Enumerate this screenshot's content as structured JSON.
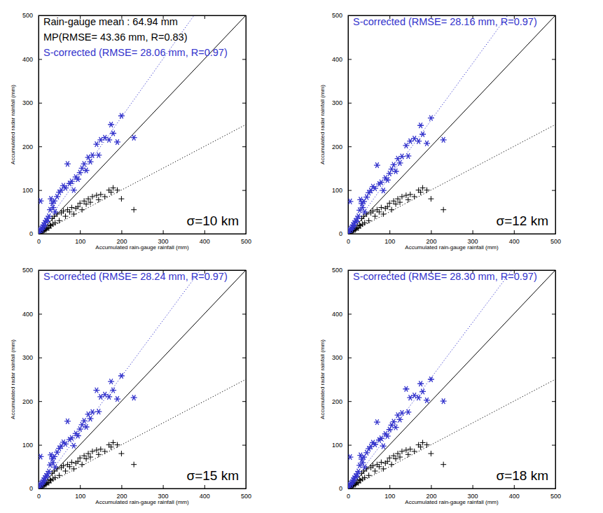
{
  "chart_data": [
    {
      "type": "scatter",
      "title": "σ=10 km",
      "x_label": "Accumulated rain-gauge rainfall (mm)",
      "y_label": "Accumulated radar rainfall (mm)",
      "xlim": [
        0,
        500
      ],
      "ylim": [
        0,
        500
      ],
      "xticks": [
        0,
        100,
        200,
        300,
        400,
        500
      ],
      "yticks": [
        0,
        100,
        200,
        300,
        400,
        500
      ],
      "grid": false,
      "annotations": [
        {
          "text": "Rain-gauge mean : 64.94 mm",
          "color": "#000000"
        },
        {
          "text": "MP(RMSE= 43.36 mm, R=0.83)",
          "color": "#000000"
        },
        {
          "text": "S-corrected (RMSE= 28.06 mm, R=0.97)",
          "color": "#3333cc"
        }
      ],
      "series": [
        {
          "type": "line",
          "line_style": "solid",
          "color": "#000000",
          "x": [
            0,
            500
          ],
          "values": [
            0,
            500
          ]
        },
        {
          "type": "line",
          "line_style": "dotted",
          "color": "#000000",
          "x": [
            0,
            500
          ],
          "values": [
            0,
            250
          ]
        },
        {
          "type": "line",
          "line_style": "dotted",
          "color": "#3333cc",
          "x": [
            0,
            375
          ],
          "values": [
            0,
            500
          ]
        },
        {
          "type": "scatter",
          "marker": "plus",
          "color": "#000000",
          "x": [
            2,
            4,
            5,
            7,
            8,
            10,
            12,
            14,
            15,
            18,
            20,
            22,
            25,
            28,
            30,
            33,
            35,
            38,
            40,
            45,
            50,
            55,
            60,
            65,
            70,
            75,
            80,
            85,
            90,
            95,
            100,
            105,
            110,
            115,
            120,
            125,
            130,
            140,
            145,
            150,
            160,
            170,
            175,
            180,
            190,
            200,
            230
          ],
          "values": [
            1,
            3,
            2,
            5,
            4,
            6,
            7,
            8,
            10,
            9,
            12,
            14,
            13,
            20,
            18,
            35,
            22,
            40,
            25,
            45,
            30,
            48,
            52,
            40,
            55,
            50,
            60,
            45,
            58,
            62,
            70,
            55,
            75,
            68,
            80,
            72,
            85,
            88,
            78,
            90,
            85,
            100,
            95,
            105,
            100,
            80,
            55
          ]
        },
        {
          "type": "scatter",
          "marker": "asterisk",
          "color": "#3333cc",
          "x": [
            2,
            4,
            5,
            7,
            8,
            10,
            12,
            14,
            15,
            18,
            20,
            22,
            25,
            28,
            30,
            33,
            35,
            38,
            40,
            45,
            50,
            55,
            60,
            65,
            70,
            75,
            80,
            85,
            90,
            95,
            100,
            105,
            110,
            115,
            120,
            125,
            130,
            140,
            145,
            150,
            160,
            170,
            175,
            180,
            190,
            200,
            230
          ],
          "values": [
            3,
            8,
            75,
            12,
            10,
            15,
            20,
            18,
            25,
            30,
            28,
            35,
            40,
            55,
            80,
            70,
            60,
            75,
            50,
            85,
            95,
            100,
            110,
            105,
            160,
            115,
            120,
            100,
            130,
            125,
            140,
            150,
            160,
            145,
            175,
            165,
            180,
            205,
            180,
            215,
            220,
            215,
            250,
            230,
            210,
            270,
            220
          ]
        }
      ]
    },
    {
      "type": "scatter",
      "title": "σ=12 km",
      "x_label": "Accumulated rain-gauge rainfall (mm)",
      "y_label": "Accumulated radar rainfall (mm)",
      "xlim": [
        0,
        500
      ],
      "ylim": [
        0,
        500
      ],
      "xticks": [
        0,
        100,
        200,
        300,
        400,
        500
      ],
      "yticks": [
        0,
        100,
        200,
        300,
        400,
        500
      ],
      "grid": false,
      "annotations": [
        {
          "text": "S-corrected (RMSE= 28.16 mm, R=0.97)",
          "color": "#3333cc"
        }
      ],
      "series": [
        {
          "type": "line",
          "line_style": "solid",
          "color": "#000000",
          "x": [
            0,
            500
          ],
          "values": [
            0,
            500
          ]
        },
        {
          "type": "line",
          "line_style": "dotted",
          "color": "#000000",
          "x": [
            0,
            500
          ],
          "values": [
            0,
            250
          ]
        },
        {
          "type": "line",
          "line_style": "dotted",
          "color": "#3333cc",
          "x": [
            0,
            385
          ],
          "values": [
            0,
            500
          ]
        },
        {
          "type": "scatter",
          "marker": "plus",
          "color": "#000000",
          "x": [
            2,
            4,
            5,
            7,
            8,
            10,
            12,
            14,
            15,
            18,
            20,
            22,
            25,
            28,
            30,
            33,
            35,
            38,
            40,
            45,
            50,
            55,
            60,
            65,
            70,
            75,
            80,
            85,
            90,
            95,
            100,
            105,
            110,
            115,
            120,
            125,
            130,
            140,
            145,
            150,
            160,
            170,
            175,
            180,
            190,
            200,
            230
          ],
          "values": [
            1,
            3,
            2,
            5,
            4,
            6,
            7,
            8,
            10,
            9,
            12,
            14,
            13,
            20,
            18,
            35,
            22,
            40,
            25,
            45,
            30,
            48,
            52,
            40,
            55,
            50,
            60,
            45,
            58,
            62,
            70,
            55,
            75,
            68,
            80,
            72,
            85,
            88,
            78,
            90,
            85,
            100,
            95,
            105,
            100,
            80,
            55
          ]
        },
        {
          "type": "scatter",
          "marker": "asterisk",
          "color": "#3333cc",
          "x": [
            2,
            4,
            5,
            7,
            8,
            10,
            12,
            14,
            15,
            18,
            20,
            22,
            25,
            28,
            30,
            33,
            35,
            38,
            40,
            45,
            50,
            55,
            60,
            65,
            70,
            75,
            80,
            85,
            90,
            95,
            100,
            105,
            110,
            115,
            120,
            125,
            130,
            140,
            145,
            150,
            160,
            170,
            175,
            180,
            190,
            200,
            230
          ],
          "values": [
            3,
            8,
            74,
            12,
            10,
            15,
            20,
            18,
            25,
            29,
            28,
            35,
            40,
            54,
            78,
            69,
            60,
            74,
            50,
            84,
            94,
            99,
            108,
            104,
            157,
            114,
            118,
            99,
            128,
            123,
            138,
            148,
            158,
            143,
            172,
            162,
            177,
            202,
            178,
            212,
            218,
            212,
            248,
            228,
            207,
            265,
            215
          ]
        }
      ]
    },
    {
      "type": "scatter",
      "title": "σ=15 km",
      "x_label": "Accumulated rain-gauge rainfall (mm)",
      "y_label": "Accumulated radar rainfall (mm)",
      "xlim": [
        0,
        500
      ],
      "ylim": [
        0,
        500
      ],
      "xticks": [
        0,
        100,
        200,
        300,
        400,
        500
      ],
      "yticks": [
        0,
        100,
        200,
        300,
        400,
        500
      ],
      "grid": false,
      "annotations": [
        {
          "text": "S-corrected (RMSE= 28.24 mm, R=0.97)",
          "color": "#3333cc"
        }
      ],
      "series": [
        {
          "type": "line",
          "line_style": "solid",
          "color": "#000000",
          "x": [
            0,
            500
          ],
          "values": [
            0,
            500
          ]
        },
        {
          "type": "line",
          "line_style": "dotted",
          "color": "#000000",
          "x": [
            0,
            500
          ],
          "values": [
            0,
            250
          ]
        },
        {
          "type": "line",
          "line_style": "dotted",
          "color": "#3333cc",
          "x": [
            0,
            390
          ],
          "values": [
            0,
            500
          ]
        },
        {
          "type": "scatter",
          "marker": "plus",
          "color": "#000000",
          "x": [
            2,
            4,
            5,
            7,
            8,
            10,
            12,
            14,
            15,
            18,
            20,
            22,
            25,
            28,
            30,
            33,
            35,
            38,
            40,
            45,
            50,
            55,
            60,
            65,
            70,
            75,
            80,
            85,
            90,
            95,
            100,
            105,
            110,
            115,
            120,
            125,
            130,
            140,
            145,
            150,
            160,
            170,
            175,
            180,
            190,
            200,
            230
          ],
          "values": [
            1,
            3,
            2,
            5,
            4,
            6,
            7,
            8,
            10,
            9,
            12,
            14,
            13,
            20,
            18,
            35,
            22,
            40,
            25,
            45,
            30,
            48,
            52,
            40,
            55,
            50,
            60,
            45,
            58,
            62,
            70,
            55,
            75,
            68,
            80,
            72,
            85,
            88,
            78,
            90,
            85,
            100,
            95,
            105,
            100,
            80,
            55
          ]
        },
        {
          "type": "scatter",
          "marker": "asterisk",
          "color": "#3333cc",
          "x": [
            2,
            4,
            5,
            7,
            8,
            10,
            12,
            14,
            15,
            18,
            20,
            22,
            25,
            28,
            30,
            33,
            35,
            38,
            40,
            45,
            50,
            55,
            60,
            65,
            70,
            75,
            80,
            85,
            90,
            95,
            100,
            105,
            110,
            115,
            120,
            125,
            130,
            140,
            145,
            150,
            160,
            170,
            175,
            180,
            190,
            200,
            230
          ],
          "values": [
            3,
            8,
            73,
            12,
            10,
            15,
            19,
            18,
            24,
            29,
            27,
            34,
            39,
            54,
            77,
            68,
            59,
            73,
            49,
            83,
            92,
            97,
            106,
            102,
            154,
            112,
            116,
            98,
            126,
            121,
            136,
            146,
            155,
            141,
            170,
            160,
            175,
            225,
            176,
            210,
            215,
            210,
            245,
            225,
            205,
            258,
            208
          ]
        }
      ]
    },
    {
      "type": "scatter",
      "title": "σ=18 km",
      "x_label": "Accumulated rain-gauge rainfall (mm)",
      "y_label": "Accumulated radar rainfall (mm)",
      "xlim": [
        0,
        500
      ],
      "ylim": [
        0,
        500
      ],
      "xticks": [
        0,
        100,
        200,
        300,
        400,
        500
      ],
      "yticks": [
        0,
        100,
        200,
        300,
        400,
        500
      ],
      "grid": false,
      "annotations": [
        {
          "text": "S-corrected (RMSE= 28.30 mm, R=0.97)",
          "color": "#3333cc"
        }
      ],
      "series": [
        {
          "type": "line",
          "line_style": "solid",
          "color": "#000000",
          "x": [
            0,
            500
          ],
          "values": [
            0,
            500
          ]
        },
        {
          "type": "line",
          "line_style": "dotted",
          "color": "#000000",
          "x": [
            0,
            500
          ],
          "values": [
            0,
            250
          ]
        },
        {
          "type": "line",
          "line_style": "dotted",
          "color": "#3333cc",
          "x": [
            0,
            395
          ],
          "values": [
            0,
            500
          ]
        },
        {
          "type": "scatter",
          "marker": "plus",
          "color": "#000000",
          "x": [
            2,
            4,
            5,
            7,
            8,
            10,
            12,
            14,
            15,
            18,
            20,
            22,
            25,
            28,
            30,
            33,
            35,
            38,
            40,
            45,
            50,
            55,
            60,
            65,
            70,
            75,
            80,
            85,
            90,
            95,
            100,
            105,
            110,
            115,
            120,
            125,
            130,
            140,
            145,
            150,
            160,
            170,
            175,
            180,
            190,
            200,
            230
          ],
          "values": [
            1,
            3,
            2,
            5,
            4,
            6,
            7,
            8,
            10,
            9,
            12,
            14,
            13,
            20,
            18,
            35,
            22,
            40,
            25,
            45,
            30,
            48,
            52,
            40,
            55,
            50,
            60,
            45,
            58,
            62,
            70,
            55,
            75,
            68,
            80,
            72,
            85,
            88,
            78,
            90,
            85,
            100,
            95,
            105,
            100,
            80,
            55
          ]
        },
        {
          "type": "scatter",
          "marker": "asterisk",
          "color": "#3333cc",
          "x": [
            2,
            4,
            5,
            7,
            8,
            10,
            12,
            14,
            15,
            18,
            20,
            22,
            25,
            28,
            30,
            33,
            35,
            38,
            40,
            45,
            50,
            55,
            60,
            65,
            70,
            75,
            80,
            85,
            90,
            95,
            100,
            105,
            110,
            115,
            120,
            125,
            130,
            140,
            145,
            150,
            160,
            170,
            175,
            180,
            190,
            200,
            230
          ],
          "values": [
            3,
            8,
            72,
            12,
            10,
            15,
            19,
            18,
            24,
            28,
            27,
            34,
            39,
            53,
            76,
            67,
            59,
            72,
            49,
            82,
            91,
            96,
            105,
            101,
            152,
            111,
            115,
            97,
            125,
            120,
            135,
            145,
            153,
            140,
            168,
            158,
            173,
            228,
            175,
            208,
            213,
            208,
            240,
            222,
            202,
            250,
            200
          ]
        }
      ]
    }
  ]
}
